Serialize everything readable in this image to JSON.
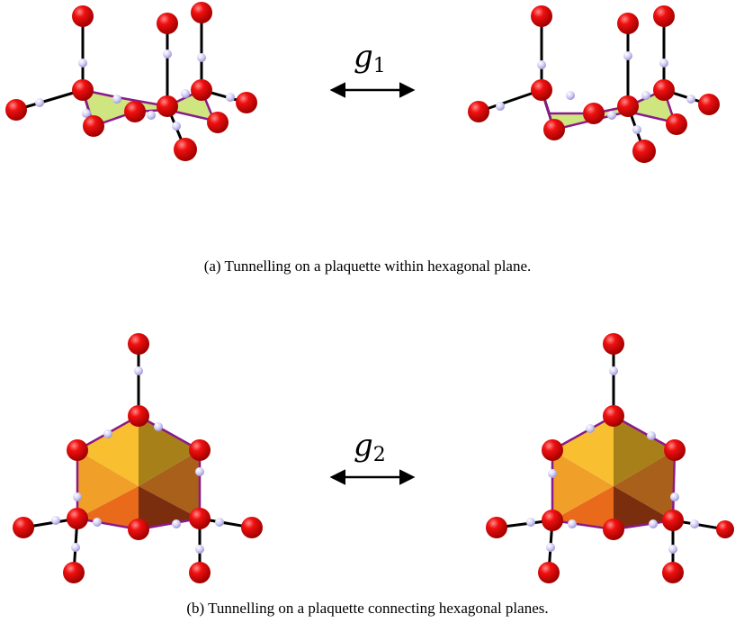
{
  "panel_a": {
    "caption": "(a) Tunnelling on a plaquette within hexagonal plane.",
    "operator_symbol": "g",
    "operator_index": "1"
  },
  "panel_b": {
    "caption": "(b) Tunnelling on a plaquette connecting hexagonal planes.",
    "operator_symbol": "g",
    "operator_index": "2"
  },
  "colors": {
    "oxygen": "#e80000",
    "hydrogen": "#c8c4f2",
    "bond": "#000000",
    "plaquette_fill_a": "#c6e06a",
    "plaquette_edge": "#8a1a8a",
    "hexagon_light": "#f8c030",
    "hexagon_dark": "#8a3a10"
  }
}
